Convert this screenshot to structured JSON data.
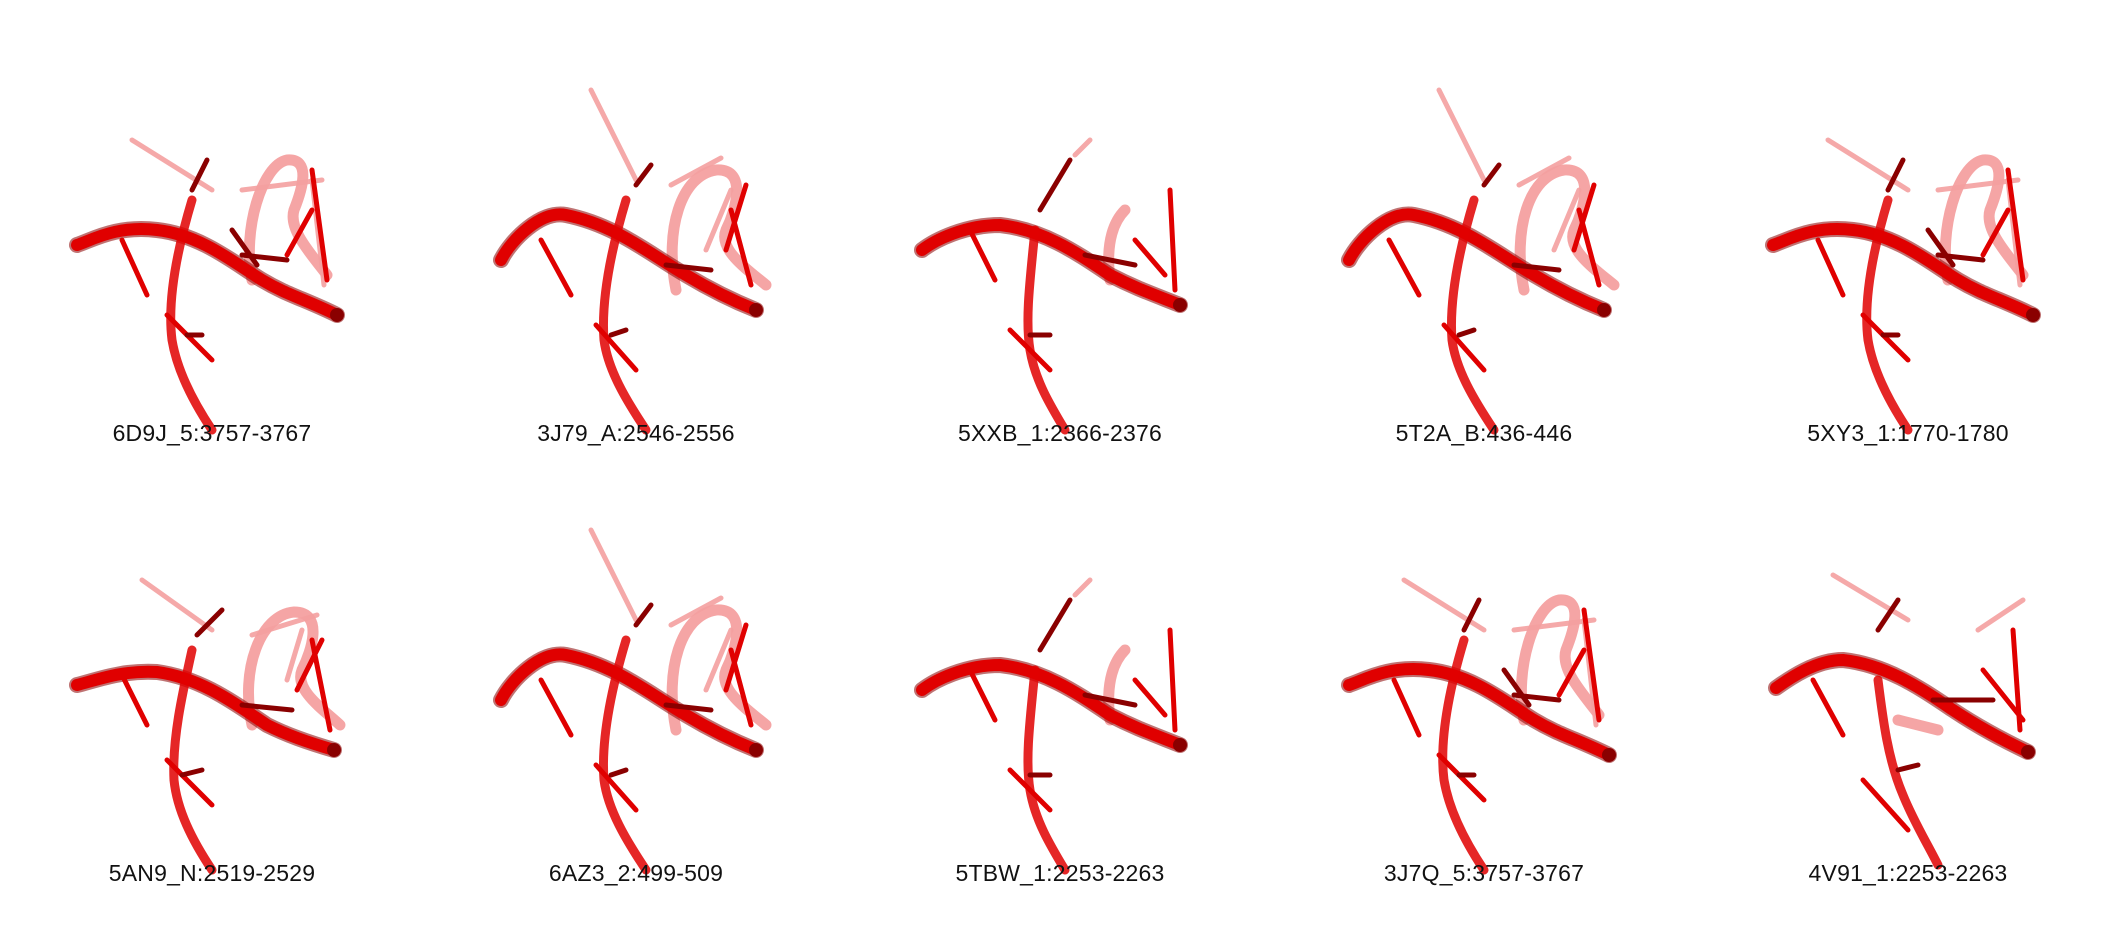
{
  "colors": {
    "strand": "#e00000",
    "strand_dark": "#8a0000",
    "strand_light": "#f4a0a0",
    "caption": "#111111"
  },
  "structures": [
    {
      "label": "6D9J_5:3757-3767",
      "variant": 0
    },
    {
      "label": "3J79_A:2546-2556",
      "variant": 1
    },
    {
      "label": "5XXB_1:2366-2376",
      "variant": 2
    },
    {
      "label": "5T2A_B:436-446",
      "variant": 1
    },
    {
      "label": "5XY3_1:1770-1780",
      "variant": 0
    },
    {
      "label": "5AN9_N:2519-2529",
      "variant": 3
    },
    {
      "label": "6AZ3_2:499-509",
      "variant": 1
    },
    {
      "label": "5TBW_1:2253-2263",
      "variant": 2
    },
    {
      "label": "3J7Q_5:3757-3767",
      "variant": 0
    },
    {
      "label": "4V91_1:2253-2263",
      "variant": 4
    }
  ]
}
